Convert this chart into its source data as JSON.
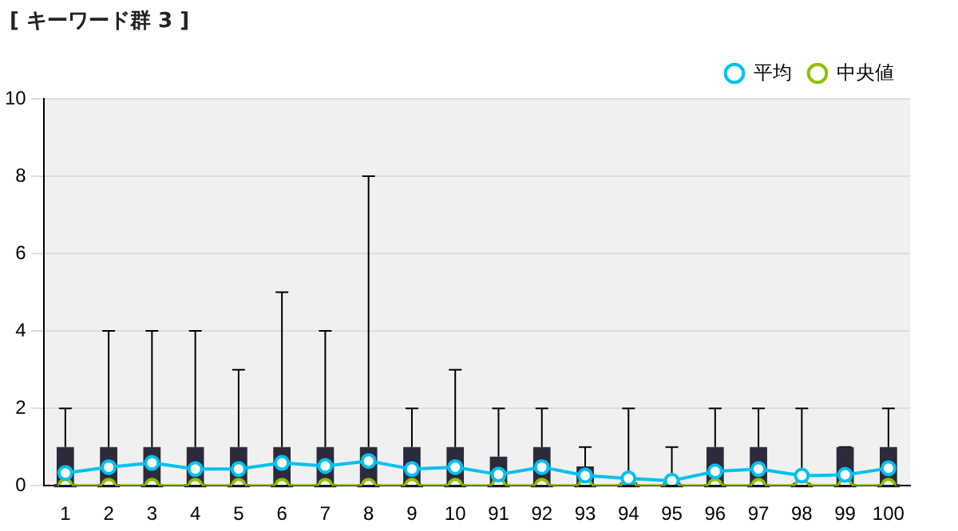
{
  "chart_data": {
    "type": "box",
    "title": "[ キーワード群 3 ]",
    "categories": [
      "1",
      "2",
      "3",
      "4",
      "5",
      "6",
      "7",
      "8",
      "9",
      "10",
      "91",
      "92",
      "93",
      "94",
      "95",
      "96",
      "97",
      "98",
      "99",
      "100"
    ],
    "color": "#2b2b3b",
    "boxes": [
      {
        "low": 0,
        "q1": 0,
        "median": 0,
        "q3": 1,
        "high": 2
      },
      {
        "low": 0,
        "q1": 0,
        "median": 0,
        "q3": 1,
        "high": 4
      },
      {
        "low": 0,
        "q1": 0,
        "median": 0,
        "q3": 1,
        "high": 4
      },
      {
        "low": 0,
        "q1": 0,
        "median": 0,
        "q3": 1,
        "high": 4
      },
      {
        "low": 0,
        "q1": 0,
        "median": 0,
        "q3": 1,
        "high": 3
      },
      {
        "low": 0,
        "q1": 0,
        "median": 0,
        "q3": 1,
        "high": 5
      },
      {
        "low": 0,
        "q1": 0,
        "median": 0,
        "q3": 1,
        "high": 4
      },
      {
        "low": 0,
        "q1": 0,
        "median": 0,
        "q3": 1,
        "high": 8
      },
      {
        "low": 0,
        "q1": 0,
        "median": 0,
        "q3": 1,
        "high": 2
      },
      {
        "low": 0,
        "q1": 0,
        "median": 0,
        "q3": 1,
        "high": 3
      },
      {
        "low": 0,
        "q1": 0,
        "median": 0,
        "q3": 0.75,
        "high": 2
      },
      {
        "low": 0,
        "q1": 0,
        "median": 0,
        "q3": 1,
        "high": 2
      },
      {
        "low": 0,
        "q1": 0,
        "median": 0,
        "q3": 0.5,
        "high": 1
      },
      {
        "low": 0,
        "q1": 0,
        "median": 0,
        "q3": 0,
        "high": 2
      },
      {
        "low": 0,
        "q1": 0,
        "median": 0,
        "q3": 0,
        "high": 1
      },
      {
        "low": 0,
        "q1": 0,
        "median": 0,
        "q3": 1,
        "high": 2
      },
      {
        "low": 0,
        "q1": 0,
        "median": 0,
        "q3": 1,
        "high": 2
      },
      {
        "low": 0,
        "q1": 0,
        "median": 0,
        "q3": 0,
        "high": 2
      },
      {
        "low": 0,
        "q1": 0,
        "median": 0,
        "q3": 1,
        "high": 1
      },
      {
        "low": 0,
        "q1": 0,
        "median": 0,
        "q3": 1,
        "high": 2
      }
    ],
    "series": [
      {
        "name": "平均",
        "type": "line",
        "color": "#00c0f0",
        "values": [
          0.33,
          0.48,
          0.59,
          0.43,
          0.43,
          0.59,
          0.51,
          0.64,
          0.43,
          0.48,
          0.29,
          0.48,
          0.26,
          0.19,
          0.13,
          0.37,
          0.43,
          0.26,
          0.28,
          0.45
        ]
      },
      {
        "name": "中央値",
        "type": "line",
        "color": "#90c000",
        "values": [
          0,
          0,
          0,
          0,
          0,
          0,
          0,
          0,
          0,
          0,
          0,
          0,
          0,
          0,
          0,
          0,
          0,
          0,
          0,
          0
        ]
      }
    ],
    "ylim": [
      0,
      10
    ],
    "yticks": [
      0,
      2,
      4,
      6,
      8,
      10
    ],
    "grid": "y",
    "legend": "top right",
    "marker": "circle"
  }
}
